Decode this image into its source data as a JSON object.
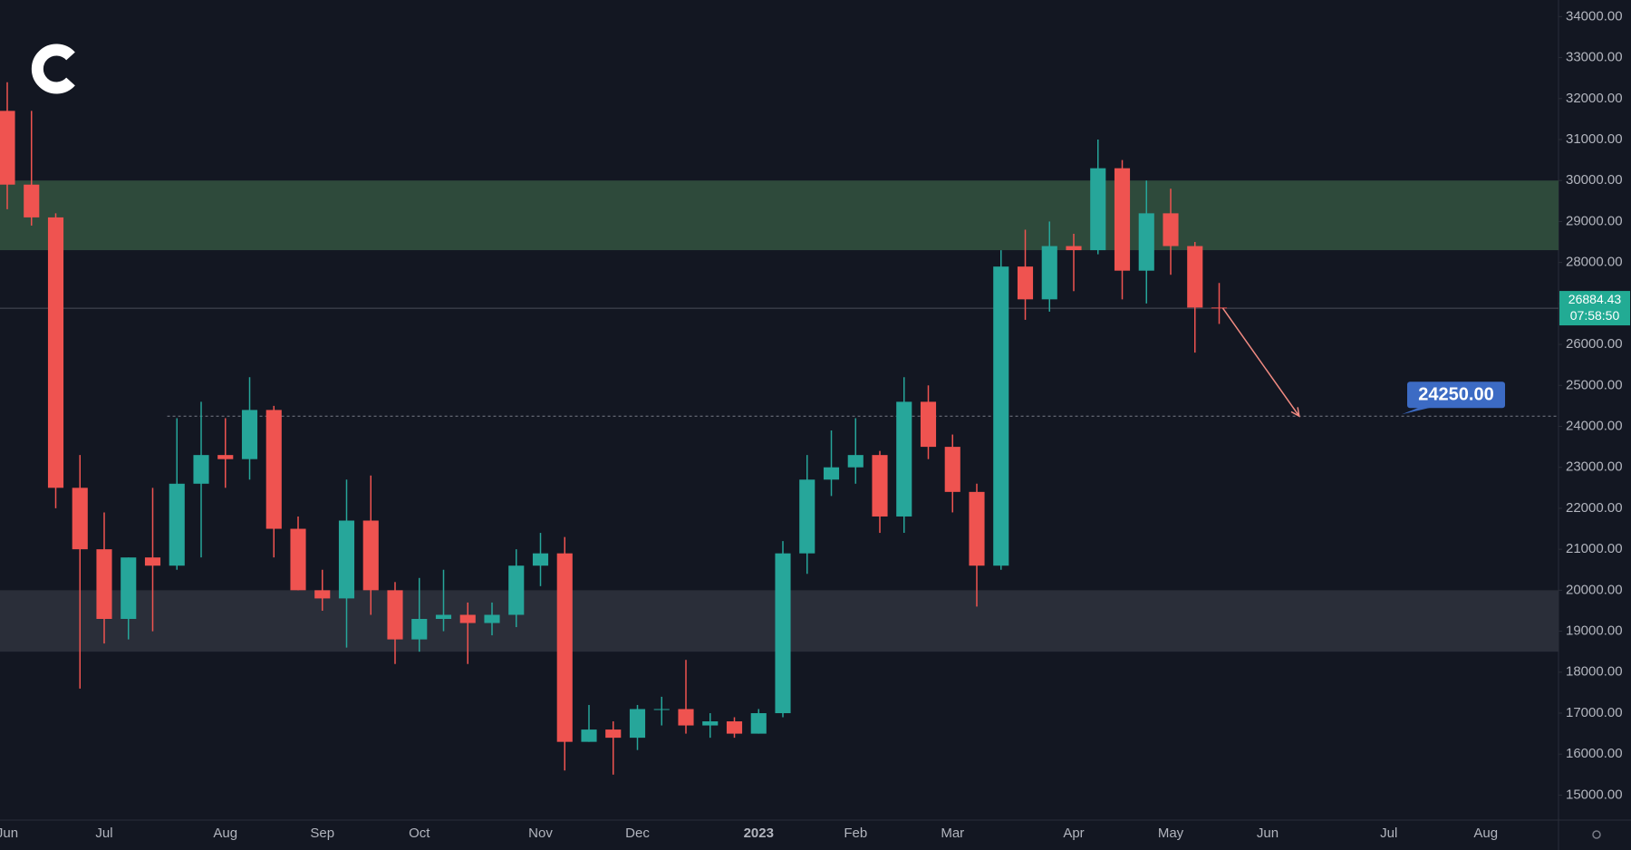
{
  "chart_data": {
    "type": "candlestick",
    "categories": [
      "Jun",
      null,
      null,
      null,
      "Jul",
      null,
      null,
      null,
      null,
      "Aug",
      null,
      null,
      null,
      "Sep",
      null,
      null,
      null,
      "Oct",
      null,
      null,
      null,
      null,
      "Nov",
      null,
      null,
      null,
      "Dec",
      null,
      null,
      null,
      null,
      "2023",
      null,
      null,
      null,
      "Feb",
      null,
      null,
      null,
      "Mar",
      null,
      null,
      null,
      null,
      "Apr",
      null,
      null,
      null,
      "May",
      null,
      null,
      null,
      "Jun",
      null,
      null,
      null,
      null,
      "Jul",
      null,
      null,
      null,
      "Aug",
      null,
      null
    ],
    "open": [
      31700,
      29900,
      29100,
      22500,
      21000,
      19300,
      20800,
      20600,
      22600,
      23300,
      23200,
      24400,
      21500,
      20000,
      19800,
      21700,
      20000,
      18800,
      19300,
      19400,
      19200,
      19400,
      20600,
      20900,
      16300,
      16600,
      16400,
      17100,
      17100,
      16700,
      16800,
      16500,
      17000,
      20900,
      22700,
      23000,
      23300,
      21800,
      24600,
      23500,
      22400,
      20600,
      27900,
      27100,
      28400,
      28300,
      30300,
      27800,
      29200,
      28400,
      26900,
      null,
      null,
      null,
      null,
      null,
      null,
      null,
      null,
      null,
      null,
      null,
      null,
      null
    ],
    "high": [
      32400,
      31700,
      29200,
      23300,
      21900,
      20800,
      22500,
      24200,
      24600,
      24200,
      25200,
      24500,
      21800,
      20500,
      22700,
      22800,
      20200,
      20300,
      20500,
      19700,
      19700,
      21000,
      21400,
      21300,
      17200,
      16800,
      17200,
      17400,
      18300,
      17000,
      16900,
      17100,
      21200,
      23300,
      23900,
      24200,
      23400,
      25200,
      25000,
      23800,
      22600,
      28300,
      28800,
      29000,
      28700,
      31000,
      30500,
      30000,
      29800,
      28500,
      27500,
      null,
      null,
      null,
      null,
      null,
      null,
      null,
      null,
      null,
      null,
      null,
      null,
      null
    ],
    "low": [
      29300,
      28900,
      22000,
      17600,
      18700,
      18800,
      19000,
      20500,
      20800,
      22500,
      22700,
      20800,
      20000,
      19500,
      18600,
      19400,
      18200,
      18500,
      19000,
      18200,
      18900,
      19100,
      20100,
      15600,
      16300,
      15500,
      16100,
      16700,
      16500,
      16400,
      16400,
      16500,
      16900,
      20400,
      22300,
      22600,
      21400,
      21400,
      23200,
      21900,
      19600,
      20500,
      26600,
      26800,
      27300,
      28200,
      27100,
      27000,
      27700,
      25800,
      26500,
      null,
      null,
      null,
      null,
      null,
      null,
      null,
      null,
      null,
      null,
      null,
      null,
      null
    ],
    "close": [
      29900,
      29100,
      22500,
      21000,
      19300,
      20800,
      20600,
      22600,
      23300,
      23200,
      24400,
      21500,
      20000,
      19800,
      21700,
      20000,
      18800,
      19300,
      19400,
      19200,
      19400,
      20600,
      20900,
      16300,
      16600,
      16400,
      17100,
      17100,
      16700,
      16800,
      16500,
      17000,
      20900,
      22700,
      23000,
      23300,
      21800,
      24600,
      23500,
      22400,
      20600,
      27900,
      27100,
      28400,
      28300,
      30300,
      27800,
      29200,
      28400,
      26900,
      26884.43,
      null,
      null,
      null,
      null,
      null,
      null,
      null,
      null,
      null,
      null,
      null,
      null,
      null
    ],
    "up_color": "#26a69a",
    "down_color": "#ef5350",
    "ylim": [
      14390,
      34406
    ],
    "yticks": [
      {
        "value": 15000,
        "label": "15000.00"
      },
      {
        "value": 16000,
        "label": "16000.00"
      },
      {
        "value": 17000,
        "label": "17000.00"
      },
      {
        "value": 18000,
        "label": "18000.00"
      },
      {
        "value": 19000,
        "label": "19000.00"
      },
      {
        "value": 20000,
        "label": "20000.00"
      },
      {
        "value": 21000,
        "label": "21000.00"
      },
      {
        "value": 22000,
        "label": "22000.00"
      },
      {
        "value": 23000,
        "label": "23000.00"
      },
      {
        "value": 24000,
        "label": "24000.00"
      },
      {
        "value": 25000,
        "label": "25000.00"
      },
      {
        "value": 26000,
        "label": "26000.00"
      },
      {
        "value": 27000,
        "label": "27000.00"
      },
      {
        "value": 28000,
        "label": "28000.00"
      },
      {
        "value": 29000,
        "label": "29000.00"
      },
      {
        "value": 30000,
        "label": "30000.00"
      },
      {
        "value": 31000,
        "label": "31000.00"
      },
      {
        "value": 32000,
        "label": "32000.00"
      },
      {
        "value": 33000,
        "label": "33000.00"
      },
      {
        "value": 34000,
        "label": "34000.00"
      }
    ],
    "grid": false,
    "zones": [
      {
        "from": 28300,
        "to": 30000,
        "color": "#2e4a3b"
      },
      {
        "from": 18500,
        "to": 20000,
        "color": "#2a2e39"
      }
    ],
    "last_price": {
      "value": 26884.43,
      "countdown": "07:58:50",
      "color": "#22ab94"
    },
    "target": {
      "value": 24250,
      "label": "24250.00",
      "color": "#3c6bc4"
    }
  }
}
